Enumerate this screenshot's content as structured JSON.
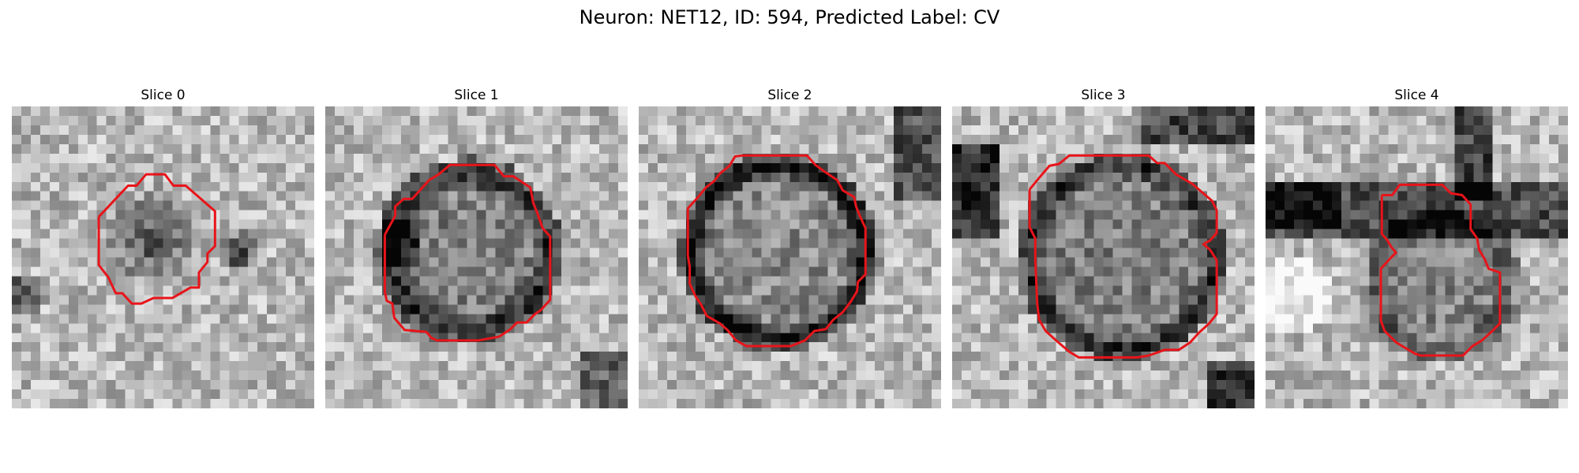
{
  "figure": {
    "suptitle": "Neuron: NET12, ID: 594, Predicted Label: CV",
    "contour_color": "#e8141a",
    "colormap": "gray"
  },
  "panels": [
    {
      "title": "Slice 0",
      "pattern": "blob-small-dark"
    },
    {
      "title": "Slice 1",
      "pattern": "ring-dark-edge"
    },
    {
      "title": "Slice 2",
      "pattern": "ring-dark-edge-strong"
    },
    {
      "title": "Slice 3",
      "pattern": "ring-dark-corners"
    },
    {
      "title": "Slice 4",
      "pattern": "membrane-dark-upper"
    }
  ]
}
